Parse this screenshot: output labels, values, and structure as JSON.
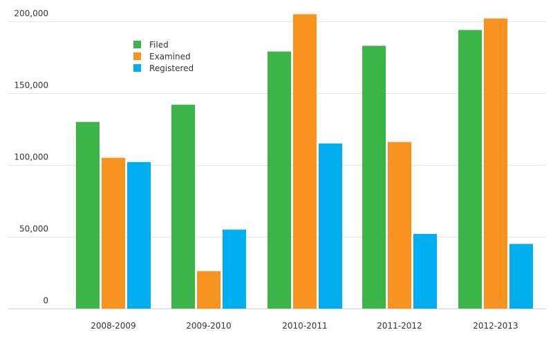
{
  "chart_data": {
    "type": "bar",
    "title": "",
    "xlabel": "",
    "ylabel": "",
    "categories": [
      "2008-2009",
      "2009-2010",
      "2010-2011",
      "2011-2012",
      "2012-2013"
    ],
    "ylim": [
      0,
      200000
    ],
    "yticks": [
      0,
      50000,
      100000,
      150000,
      200000
    ],
    "ytick_labels": [
      "0",
      "50,000",
      "100,000",
      "150,000",
      "200,000"
    ],
    "grid": true,
    "legend_position": "top-left",
    "series": [
      {
        "name": "Filed",
        "color": "#3bb54a",
        "values": [
          130000,
          142000,
          179000,
          183000,
          194000
        ]
      },
      {
        "name": "Examined",
        "color": "#f7931e",
        "values": [
          105000,
          26000,
          205000,
          116000,
          202000
        ]
      },
      {
        "name": "Registered",
        "color": "#00aeef",
        "values": [
          102000,
          55000,
          115000,
          52000,
          45000
        ]
      }
    ]
  }
}
